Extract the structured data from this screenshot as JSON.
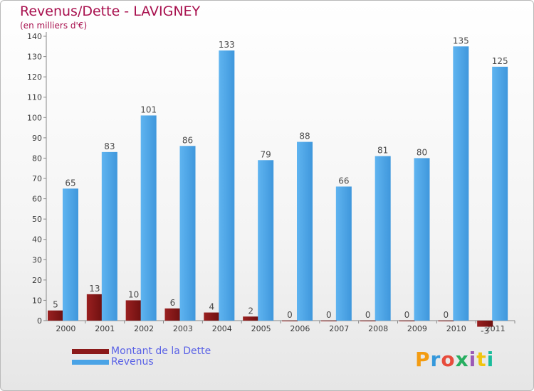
{
  "header": {
    "title": "Revenus/Dette - LAVIGNEY",
    "subtitle": "(en milliers d'€)"
  },
  "brand": {
    "text": "Proxiti",
    "colors": [
      "#f39c12",
      "#3498db",
      "#e74c3c",
      "#27ae60",
      "#9b59b6",
      "#f1c40f",
      "#1abc9c"
    ]
  },
  "colors": {
    "dette": "#8b1a1a",
    "revenus": "#4aa3e6",
    "legend_text": "#5a62e6",
    "title": "#a8104e"
  },
  "chart_data": {
    "type": "bar",
    "title": "Revenus/Dette - LAVIGNEY",
    "subtitle": "(en milliers d'€)",
    "categories": [
      "2000",
      "2001",
      "2002",
      "2003",
      "2004",
      "2005",
      "2006",
      "2007",
      "2008",
      "2009",
      "2010",
      "2011"
    ],
    "series": [
      {
        "name": "Montant de la Dette",
        "color": "#8b1a1a",
        "values": [
          5,
          13,
          10,
          6,
          4,
          2,
          0,
          0,
          0,
          0,
          0,
          -3
        ]
      },
      {
        "name": "Revenus",
        "color": "#4aa3e6",
        "values": [
          65,
          83,
          101,
          86,
          133,
          79,
          88,
          66,
          81,
          80,
          135,
          125
        ]
      }
    ],
    "yticks": [
      0,
      10,
      20,
      30,
      40,
      50,
      60,
      70,
      80,
      90,
      100,
      110,
      120,
      130,
      140
    ],
    "ylim": [
      0,
      140
    ],
    "grid": false,
    "legend_position": "bottom-left"
  }
}
